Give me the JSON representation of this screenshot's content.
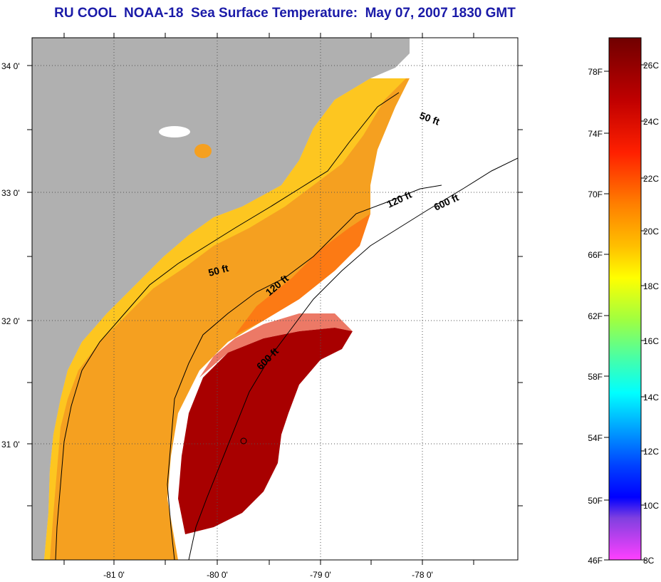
{
  "title": "RU COOL  NOAA-18  Sea Surface Temperature:  May 07, 2007 1830 GMT",
  "map": {
    "lat_ticks": [
      "34 0'",
      "33 0'",
      "32 0'",
      "31 0'"
    ],
    "lon_ticks": [
      "-81 0'",
      "-80 0'",
      "-79 0'",
      "-78 0'"
    ],
    "contour_labels": [
      "50 ft",
      "120 ft",
      "600 ft",
      "50 ft",
      "120 ft",
      "600 ft"
    ],
    "colors": {
      "land": "#b0b0b0",
      "no_data": "#ffffff",
      "shelf_water": "#f5a623",
      "gulf_stream": "#a80000"
    }
  },
  "colorbar": {
    "fahrenheit_labels": [
      "78F",
      "74F",
      "70F",
      "66F",
      "62F",
      "58F",
      "54F",
      "50F",
      "46F"
    ],
    "celsius_labels": [
      "26C",
      "24C",
      "22C",
      "20C",
      "18C",
      "16C",
      "14C",
      "12C",
      "10C",
      "8C"
    ],
    "gradient_top_to_bottom": [
      "#7a0000",
      "#c00000",
      "#ff2000",
      "#ff7a00",
      "#ffc000",
      "#ffff00",
      "#a0ff40",
      "#40ffb0",
      "#00ffff",
      "#00a0ff",
      "#0040ff",
      "#0000ff",
      "#8040e0",
      "#ff40ff"
    ]
  }
}
